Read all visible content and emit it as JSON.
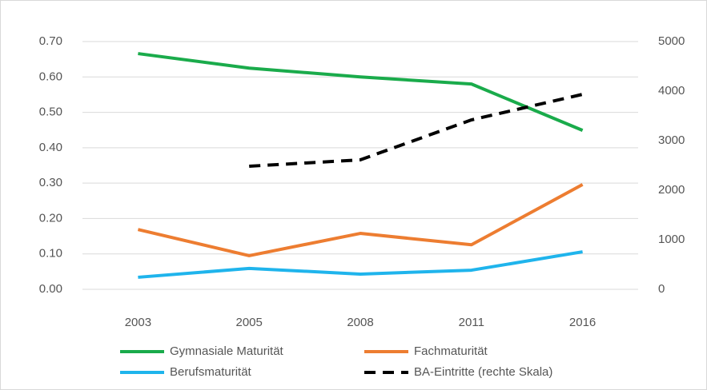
{
  "chart_data": {
    "type": "line",
    "categories": [
      "2003",
      "2005",
      "2008",
      "2011",
      "2016"
    ],
    "series": [
      {
        "name": "Gymnasiale Maturität",
        "color": "#1aab4b",
        "values": [
          0.666,
          0.625,
          0.6,
          0.58,
          0.449
        ]
      },
      {
        "name": "Fachmaturität",
        "color": "#ed7d31",
        "values": [
          0.169,
          0.095,
          0.158,
          0.126,
          0.296
        ]
      },
      {
        "name": "Berufsmaturität",
        "color": "#1fb4ec",
        "values": [
          0.034,
          0.059,
          0.043,
          0.054,
          0.106
        ]
      },
      {
        "name": "BA-Eintritte (rechte Skala)",
        "color": "#000000",
        "dashed": true,
        "axis": "y2",
        "values": [
          null,
          2484,
          2613,
          3419,
          3935
        ]
      }
    ],
    "ylim": [
      0,
      0.7
    ],
    "yticks": [
      {
        "value": 0,
        "label": "0.00"
      },
      {
        "value": 0.1,
        "label": "0.10"
      },
      {
        "value": 0.2,
        "label": "0.20"
      },
      {
        "value": 0.3,
        "label": "0.30"
      },
      {
        "value": 0.4,
        "label": "0.40"
      },
      {
        "value": 0.5,
        "label": "0.50"
      },
      {
        "value": 0.6,
        "label": "0.60"
      },
      {
        "value": 0.7,
        "label": "0.70"
      }
    ],
    "y2lim": [
      0,
      5000
    ],
    "y2ticks": [
      0,
      1000,
      2000,
      3000,
      4000,
      5000
    ],
    "grid": true,
    "legend": "bottom"
  }
}
